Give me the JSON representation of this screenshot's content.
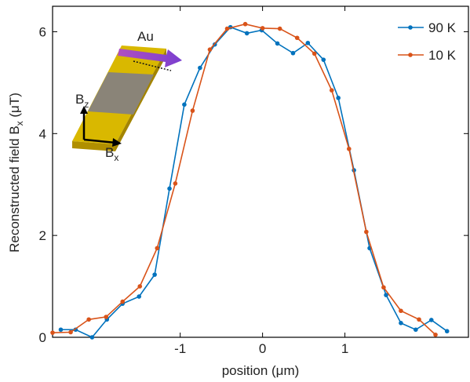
{
  "chart_data": {
    "type": "line",
    "xlabel": "position (μm)",
    "ylabel": {
      "base": "Reconstructed field B",
      "sub": "x",
      "unit": " (μT)"
    },
    "inset_labels": {
      "material": "Au",
      "bz": {
        "base": "B",
        "sub": "z"
      },
      "bx": {
        "base": "B",
        "sub": "x"
      }
    },
    "xlim": [
      -2.55,
      2.5
    ],
    "ylim": [
      0,
      6.5
    ],
    "xticks": [
      -1,
      0,
      1
    ],
    "yticks": [
      0,
      2,
      4,
      6
    ],
    "grid": false,
    "legend": "upper right",
    "series": [
      {
        "name": "90 K",
        "color": "#0072bd",
        "x": [
          -2.45,
          -2.27,
          -2.07,
          -1.89,
          -1.7,
          -1.5,
          -1.31,
          -1.13,
          -0.95,
          -0.76,
          -0.58,
          -0.39,
          -0.19,
          -0.01,
          0.18,
          0.37,
          0.55,
          0.74,
          0.92,
          1.11,
          1.3,
          1.5,
          1.68,
          1.86,
          2.05,
          2.24
        ],
        "values": [
          0.15,
          0.15,
          0,
          0.35,
          0.66,
          0.8,
          1.23,
          2.92,
          4.57,
          5.29,
          5.75,
          6.09,
          5.97,
          6.03,
          5.77,
          5.58,
          5.78,
          5.45,
          4.7,
          3.28,
          1.75,
          0.83,
          0.28,
          0.15,
          0.34,
          0.12
        ]
      },
      {
        "name": "10 K",
        "color": "#d95319",
        "x": [
          -2.55,
          -2.33,
          -2.11,
          -1.9,
          -1.7,
          -1.49,
          -1.28,
          -1.06,
          -0.85,
          -0.64,
          -0.43,
          -0.21,
          0,
          0.21,
          0.42,
          0.63,
          0.84,
          1.05,
          1.26,
          1.47,
          1.68,
          1.9,
          2.1
        ],
        "values": [
          0.09,
          0.1,
          0.35,
          0.4,
          0.7,
          1.0,
          1.75,
          3.02,
          4.45,
          5.65,
          6.06,
          6.15,
          6.07,
          6.06,
          5.88,
          5.57,
          4.85,
          3.7,
          2.07,
          0.98,
          0.52,
          0.35,
          0.05
        ]
      }
    ]
  }
}
